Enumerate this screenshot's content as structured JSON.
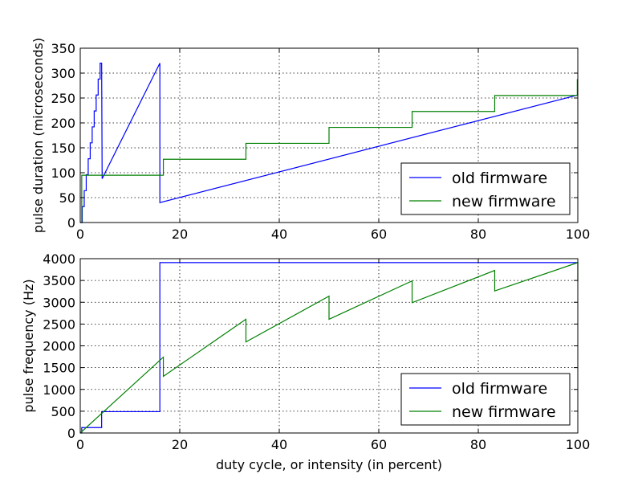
{
  "chart_data": [
    {
      "type": "line",
      "id": "top",
      "xlabel": "",
      "ylabel": "pulse duration (microseconds)",
      "xlim": [
        0,
        100
      ],
      "ylim": [
        0,
        350
      ],
      "xticks": [
        0,
        20,
        40,
        60,
        80,
        100
      ],
      "yticks": [
        0,
        50,
        100,
        150,
        200,
        250,
        300,
        350
      ],
      "grid": true,
      "legend_position": "lower-right",
      "series": [
        {
          "name": "old firmware",
          "color": "#0000ff",
          "x": [
            0,
            0.4,
            0.4,
            0.8,
            0.8,
            1.2,
            1.2,
            1.6,
            1.6,
            2.0,
            2.0,
            2.4,
            2.4,
            2.8,
            2.8,
            3.2,
            3.2,
            3.6,
            3.6,
            4.0,
            4.0,
            4.3,
            4.4,
            16.0,
            16.0,
            100
          ],
          "y": [
            0,
            0,
            32,
            32,
            64,
            64,
            96,
            96,
            128,
            128,
            160,
            160,
            192,
            192,
            224,
            224,
            256,
            256,
            288,
            288,
            320,
            320,
            88,
            320,
            40,
            256
          ]
        },
        {
          "name": "new firmware",
          "color": "#008000",
          "x": [
            0,
            0.3,
            0.3,
            16.7,
            16.7,
            33.3,
            33.3,
            50.0,
            50.0,
            66.7,
            66.7,
            83.3,
            83.3,
            99.9,
            99.9,
            100
          ],
          "y": [
            0,
            0,
            95,
            95,
            127,
            127,
            159,
            159,
            191,
            191,
            223,
            223,
            255,
            255,
            287,
            287
          ]
        }
      ]
    },
    {
      "type": "line",
      "id": "bottom",
      "xlabel": "duty cycle, or intensity (in percent)",
      "ylabel": "pulse frequency (Hz)",
      "xlim": [
        0,
        100
      ],
      "ylim": [
        0,
        4000
      ],
      "xticks": [
        0,
        20,
        40,
        60,
        80,
        100
      ],
      "yticks": [
        0,
        500,
        1000,
        1500,
        2000,
        2500,
        3000,
        3500,
        4000
      ],
      "grid": true,
      "legend_position": "lower-right",
      "series": [
        {
          "name": "old firmware",
          "color": "#0000ff",
          "x": [
            0,
            0.3,
            0.3,
            4.3,
            4.3,
            16.0,
            16.0,
            100
          ],
          "y": [
            0,
            0,
            125,
            125,
            490,
            490,
            3910,
            3910
          ]
        },
        {
          "name": "new firmware",
          "color": "#008000",
          "x": [
            0,
            16.7,
            16.7,
            33.3,
            33.3,
            50.0,
            50.0,
            66.7,
            66.7,
            83.3,
            83.3,
            100,
            100
          ],
          "y": [
            0,
            1740,
            1300,
            2610,
            2090,
            3140,
            2610,
            3490,
            2990,
            3730,
            3260,
            3910,
            3480
          ]
        }
      ]
    }
  ]
}
